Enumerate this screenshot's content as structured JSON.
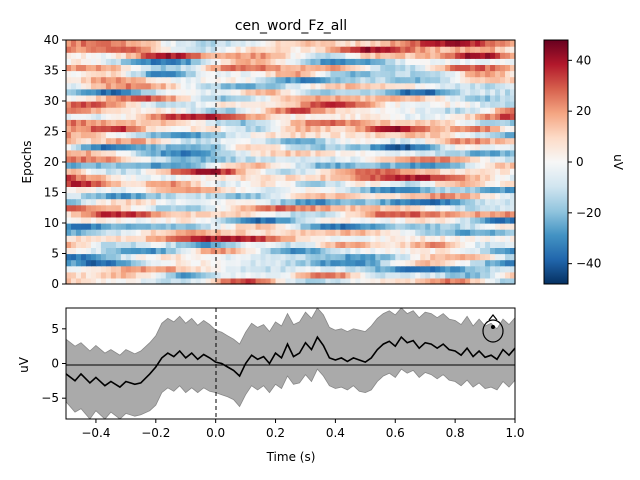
{
  "chart_data": [
    {
      "type": "heatmap",
      "title": "cen_word_Fz_all",
      "xlabel": "",
      "ylabel": "Epochs",
      "xlim": [
        -0.5,
        1.0
      ],
      "ylim": [
        0,
        40
      ],
      "y_ticks": [
        0,
        5,
        10,
        15,
        20,
        25,
        30,
        35,
        40
      ],
      "n_epochs": 40,
      "event_line_x": 0.0,
      "colormap": "RdBu_r",
      "colorbar": {
        "label": "uV",
        "range": [
          -48,
          48
        ],
        "ticks": [
          -40,
          -20,
          0,
          20,
          40
        ],
        "tick_labels": [
          "−40",
          "−20",
          "0",
          "20",
          "40"
        ]
      }
    },
    {
      "type": "line",
      "title": "",
      "xlabel": "Time (s)",
      "ylabel": "uV",
      "xlim": [
        -0.5,
        1.0
      ],
      "ylim": [
        -8,
        8
      ],
      "x_ticks": [
        -0.4,
        -0.2,
        0.0,
        0.2,
        0.4,
        0.6,
        0.8,
        1.0
      ],
      "x_tick_labels": [
        "−0.4",
        "−0.2",
        "0.0",
        "0.2",
        "0.4",
        "0.6",
        "0.8",
        "1.0"
      ],
      "y_ticks": [
        -5,
        0,
        5
      ],
      "y_tick_labels": [
        "−5",
        "0",
        "5"
      ],
      "event_line_x": 0.0,
      "zero_line": true,
      "band_color": "#aaaaaa",
      "line_color": "#000000",
      "series": [
        {
          "x": [
            -0.5,
            -0.47,
            -0.45,
            -0.42,
            -0.4,
            -0.37,
            -0.35,
            -0.32,
            -0.3,
            -0.27,
            -0.25,
            -0.22,
            -0.2,
            -0.18,
            -0.16,
            -0.14,
            -0.12,
            -0.1,
            -0.08,
            -0.06,
            -0.04,
            -0.02,
            0.0,
            0.02,
            0.04,
            0.06,
            0.08,
            0.1,
            0.12,
            0.14,
            0.16,
            0.18,
            0.2,
            0.22,
            0.24,
            0.26,
            0.28,
            0.3,
            0.32,
            0.34,
            0.36,
            0.38,
            0.4,
            0.42,
            0.44,
            0.46,
            0.48,
            0.5,
            0.52,
            0.54,
            0.56,
            0.58,
            0.6,
            0.62,
            0.64,
            0.66,
            0.68,
            0.7,
            0.72,
            0.74,
            0.76,
            0.78,
            0.8,
            0.82,
            0.84,
            0.86,
            0.88,
            0.9,
            0.92,
            0.94,
            0.96,
            0.98,
            1.0
          ],
          "y": [
            -1.5,
            -2.5,
            -1.5,
            -2.8,
            -2.0,
            -3.2,
            -2.6,
            -3.4,
            -2.6,
            -3.0,
            -2.8,
            -1.5,
            -0.5,
            0.8,
            1.5,
            1.0,
            1.8,
            0.8,
            1.5,
            0.6,
            1.3,
            0.8,
            0.2,
            0.0,
            -0.5,
            -1.0,
            -1.8,
            0.0,
            1.2,
            0.6,
            1.0,
            0.0,
            1.5,
            0.8,
            2.8,
            1.0,
            1.5,
            3.0,
            2.0,
            3.8,
            2.6,
            0.8,
            0.5,
            0.8,
            0.3,
            0.8,
            0.5,
            0.2,
            0.8,
            2.0,
            2.8,
            3.2,
            2.5,
            3.8,
            3.0,
            3.3,
            2.2,
            3.0,
            2.8,
            2.2,
            2.8,
            2.0,
            1.8,
            1.2,
            2.2,
            1.0,
            1.8,
            0.9,
            1.2,
            0.6,
            2.0,
            1.2,
            2.2
          ],
          "lower": [
            -5.5,
            -7.0,
            -6.5,
            -8.0,
            -6.8,
            -8.0,
            -7.0,
            -8.0,
            -7.2,
            -7.6,
            -7.4,
            -6.8,
            -6.0,
            -4.2,
            -3.5,
            -4.0,
            -3.2,
            -4.2,
            -3.5,
            -4.2,
            -3.5,
            -4.0,
            -4.2,
            -4.5,
            -4.8,
            -5.2,
            -6.2,
            -4.5,
            -3.2,
            -3.8,
            -3.2,
            -4.2,
            -3.0,
            -3.6,
            -1.8,
            -3.0,
            -2.8,
            -1.6,
            -2.6,
            -0.8,
            -1.8,
            -3.2,
            -3.6,
            -3.4,
            -3.8,
            -3.2,
            -4.0,
            -4.2,
            -3.8,
            -2.6,
            -1.8,
            -1.4,
            -2.0,
            -0.8,
            -1.4,
            -1.0,
            -2.0,
            -1.3,
            -1.6,
            -2.2,
            -1.6,
            -2.4,
            -2.6,
            -3.2,
            -2.4,
            -3.4,
            -2.8,
            -3.6,
            -3.4,
            -3.8,
            -2.6,
            -3.4,
            -2.4
          ],
          "upper": [
            3.5,
            2.5,
            3.0,
            1.8,
            2.6,
            1.5,
            2.0,
            1.2,
            2.0,
            1.4,
            1.8,
            3.0,
            4.0,
            5.8,
            6.5,
            6.0,
            6.8,
            5.8,
            6.5,
            5.5,
            6.2,
            5.6,
            4.8,
            4.5,
            4.0,
            3.5,
            2.8,
            4.5,
            5.8,
            5.2,
            5.6,
            4.6,
            6.0,
            5.4,
            7.2,
            5.6,
            6.0,
            7.4,
            6.5,
            8.0,
            7.0,
            5.2,
            4.8,
            5.0,
            4.6,
            5.0,
            4.8,
            4.6,
            5.4,
            6.5,
            7.2,
            7.6,
            7.0,
            8.0,
            7.2,
            7.6,
            6.6,
            7.4,
            7.2,
            6.6,
            7.2,
            6.4,
            6.2,
            5.6,
            6.8,
            5.4,
            6.4,
            5.4,
            5.8,
            5.0,
            6.4,
            5.6,
            6.6
          ]
        }
      ]
    }
  ]
}
